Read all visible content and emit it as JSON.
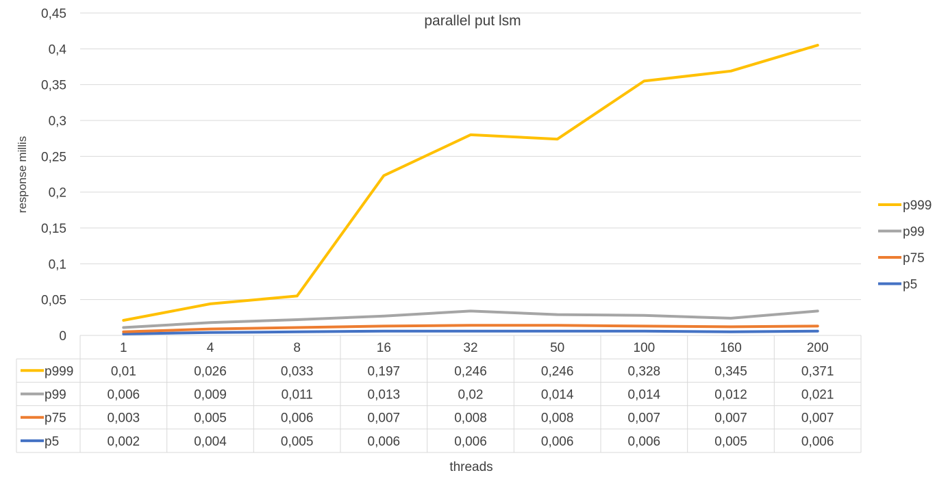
{
  "chart_data": {
    "type": "line",
    "title": "parallel put lsm",
    "xlabel": "threads",
    "ylabel": "response millis",
    "ylim": [
      0,
      0.45
    ],
    "y_ticks": [
      "0",
      "0,05",
      "0,1",
      "0,15",
      "0,2",
      "0,25",
      "0,3",
      "0,35",
      "0,4",
      "0,45"
    ],
    "categories": [
      "1",
      "4",
      "8",
      "16",
      "32",
      "50",
      "100",
      "160",
      "200"
    ],
    "grid": true,
    "legend_position": "right",
    "series": [
      {
        "name": "p999",
        "color": "#FFC000",
        "values": [
          0.021,
          0.044,
          0.055,
          0.223,
          0.28,
          0.274,
          0.355,
          0.369,
          0.405
        ],
        "table_values": [
          "0,01",
          "0,026",
          "0,033",
          "0,197",
          "0,246",
          "0,246",
          "0,328",
          "0,345",
          "0,371"
        ]
      },
      {
        "name": "p99",
        "color": "#A5A5A5",
        "values": [
          0.011,
          0.018,
          0.022,
          0.027,
          0.034,
          0.029,
          0.028,
          0.024,
          0.034
        ],
        "table_values": [
          "0,006",
          "0,009",
          "0,011",
          "0,013",
          "0,02",
          "0,014",
          "0,014",
          "0,012",
          "0,021"
        ]
      },
      {
        "name": "p75",
        "color": "#ED7D31",
        "values": [
          0.005,
          0.009,
          0.011,
          0.013,
          0.014,
          0.014,
          0.013,
          0.012,
          0.013
        ],
        "table_values": [
          "0,003",
          "0,005",
          "0,006",
          "0,007",
          "0,008",
          "0,008",
          "0,007",
          "0,007",
          "0,007"
        ]
      },
      {
        "name": "p5",
        "color": "#4472C4",
        "values": [
          0.002,
          0.004,
          0.005,
          0.006,
          0.006,
          0.006,
          0.006,
          0.005,
          0.006
        ],
        "table_values": [
          "0,002",
          "0,004",
          "0,005",
          "0,006",
          "0,006",
          "0,006",
          "0,006",
          "0,005",
          "0,006"
        ]
      }
    ]
  }
}
